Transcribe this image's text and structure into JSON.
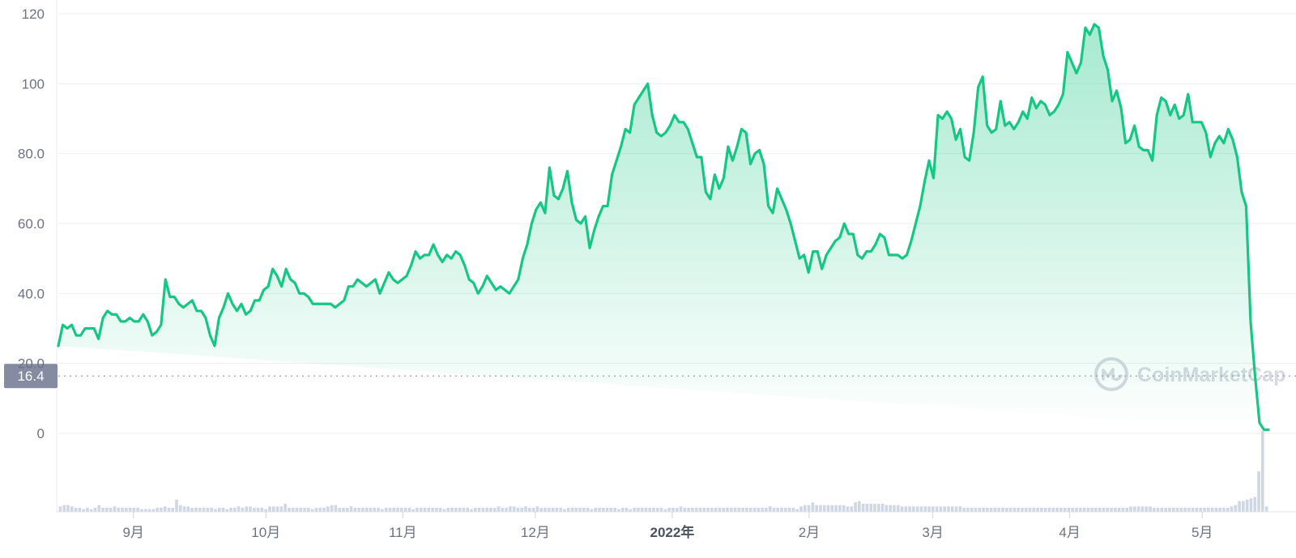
{
  "chart_data": {
    "type": "area",
    "series": [
      {
        "color": "#16c784",
        "values": [
          25,
          31,
          30,
          31,
          28,
          28,
          30,
          30,
          30,
          27,
          33,
          35,
          34,
          34,
          32,
          32,
          33,
          32,
          32,
          34,
          32,
          28,
          29,
          31,
          44,
          39,
          39,
          37,
          36,
          37,
          38,
          35,
          35,
          33,
          28,
          25,
          33,
          36,
          40,
          37,
          35,
          37,
          34,
          35,
          38,
          38,
          41,
          42,
          47,
          45,
          42,
          47,
          44,
          43,
          40,
          40,
          39,
          37,
          37,
          37,
          37,
          37,
          36,
          37,
          38,
          42,
          42,
          44,
          43,
          42,
          43,
          44,
          40,
          43,
          46,
          44,
          43,
          44,
          45,
          48,
          52,
          50,
          51,
          51,
          54,
          51,
          49,
          51,
          50,
          52,
          51,
          48,
          44,
          43,
          40,
          42,
          45,
          43,
          41,
          42,
          41,
          40,
          42,
          44,
          50,
          54,
          60,
          64,
          66,
          63,
          76,
          68,
          67,
          70,
          75,
          66,
          61,
          60,
          62,
          53,
          58,
          62,
          65,
          65,
          74,
          78,
          82,
          87,
          86,
          94,
          96,
          98,
          100,
          91,
          86,
          85,
          86,
          88,
          91,
          89,
          89,
          87,
          83,
          79,
          79,
          69,
          67,
          74,
          70,
          73,
          82,
          78,
          82,
          87,
          86,
          77,
          80,
          81,
          77,
          65,
          63,
          70,
          67,
          64,
          60,
          55,
          50,
          51,
          46,
          52,
          52,
          47,
          51,
          53,
          55,
          56,
          60,
          57,
          57,
          51,
          50,
          52,
          52,
          54,
          57,
          56,
          51,
          51,
          51,
          50,
          51,
          55,
          60,
          65,
          72,
          78,
          73,
          91,
          90,
          92,
          90,
          84,
          87,
          79,
          78,
          86,
          99,
          102,
          88,
          86,
          87,
          95,
          88,
          89,
          87,
          89,
          92,
          90,
          96,
          93,
          95,
          94,
          91,
          92,
          94,
          97,
          109,
          106,
          103,
          106,
          116,
          114,
          117,
          116,
          108,
          104,
          95,
          98,
          93,
          83,
          84,
          88,
          82,
          81,
          81,
          78,
          91,
          96,
          95,
          91,
          94,
          90,
          91,
          97,
          89,
          89,
          89,
          86,
          79,
          83,
          85,
          83,
          87,
          84,
          79,
          69,
          65,
          32,
          16.4,
          3,
          1,
          1
        ]
      }
    ],
    "tail_color": "#ea3943",
    "tail_start_index": 305,
    "current_price": "16.4",
    "volume": [
      4,
      5,
      5,
      4,
      3,
      3,
      2,
      3,
      2,
      3,
      5,
      3,
      3,
      3,
      4,
      3,
      3,
      3,
      3,
      3,
      3,
      2,
      2,
      2,
      2,
      3,
      3,
      4,
      3,
      3,
      9,
      5,
      4,
      4,
      3,
      3,
      3,
      3,
      3,
      3,
      2,
      3,
      3,
      2,
      3,
      3,
      4,
      3,
      4,
      4,
      3,
      3,
      3,
      2,
      4,
      4,
      4,
      4,
      6,
      3,
      3,
      3,
      3,
      3,
      3,
      2,
      3,
      3,
      3,
      4,
      5,
      5,
      3,
      3,
      3,
      4,
      3,
      3,
      3,
      3,
      3,
      3,
      3,
      2,
      3,
      3,
      3,
      3,
      3,
      3,
      3,
      2,
      3,
      3,
      3,
      3,
      3,
      3,
      3,
      2,
      3,
      3,
      3,
      3,
      3,
      3,
      2,
      3,
      3,
      3,
      3,
      3,
      3,
      4,
      3,
      3,
      4,
      4,
      3,
      3,
      4,
      3,
      3,
      4,
      3,
      3,
      3,
      3,
      3,
      3,
      2,
      3,
      3,
      3,
      3,
      3,
      3,
      2,
      3,
      3,
      3,
      3,
      3,
      3,
      2,
      3,
      3,
      2,
      3,
      3,
      3,
      3,
      3,
      3,
      3,
      3,
      2,
      3,
      3,
      3,
      4,
      3,
      3,
      3,
      3,
      3,
      3,
      3,
      3,
      3,
      3,
      3,
      3,
      3,
      3,
      3,
      3,
      3,
      3,
      3,
      3,
      3,
      3,
      4,
      3,
      3,
      3,
      3,
      3,
      3,
      2,
      4,
      5,
      5,
      7,
      5,
      5,
      5,
      5,
      5,
      5,
      5,
      5,
      4,
      4,
      7,
      8,
      6,
      6,
      6,
      6,
      6,
      6,
      5,
      5,
      5,
      5,
      4,
      4,
      4,
      4,
      4,
      4,
      4,
      4,
      4,
      4,
      4,
      4,
      4,
      4,
      4,
      4,
      3,
      3,
      3,
      3,
      3,
      3,
      3,
      3,
      3,
      3,
      3,
      3,
      3,
      3,
      3,
      3,
      3,
      3,
      3,
      3,
      3,
      3,
      3,
      3,
      3,
      3,
      3,
      3,
      3,
      3,
      3,
      3,
      3,
      3,
      3,
      3,
      3,
      3,
      3,
      3,
      3,
      3,
      3,
      4,
      4,
      4,
      4,
      4,
      4,
      3,
      3,
      3,
      3,
      3,
      3,
      3,
      3,
      3,
      3,
      3,
      3,
      3,
      3,
      3,
      3,
      3,
      3,
      3,
      3,
      4,
      5,
      8,
      8,
      9,
      10,
      11,
      30,
      60,
      4
    ],
    "y_ticks": [
      "0",
      "20.0",
      "40.0",
      "60.0",
      "80.0",
      "100",
      "120"
    ],
    "ylim": [
      0,
      120
    ],
    "x_tick_labels": [
      "9月",
      "10月",
      "11月",
      "12月",
      "2022年",
      "2月",
      "3月",
      "4月",
      "5月"
    ],
    "x_tick_days": [
      17,
      47,
      78,
      108,
      139,
      170,
      198,
      229,
      259
    ],
    "x_days_total": 274,
    "grid": true,
    "watermark": "CoinMarketCap"
  }
}
